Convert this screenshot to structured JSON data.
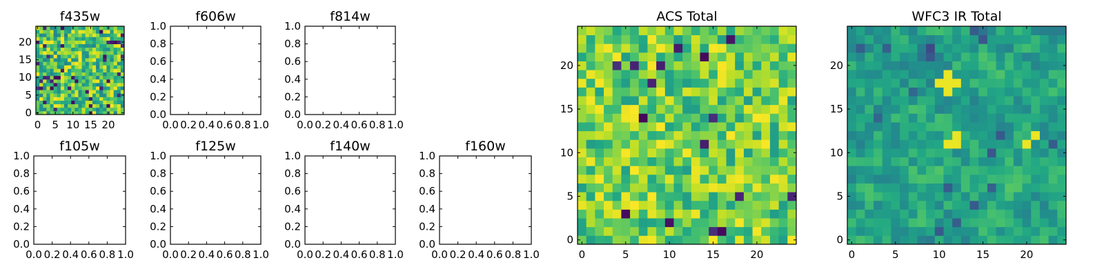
{
  "chart_data": [
    {
      "type": "heatmap",
      "title": "f435w",
      "xticks": [
        0,
        5,
        10,
        15,
        20
      ],
      "yticks": [
        0,
        5,
        10,
        15,
        20
      ],
      "xlim": [
        -0.5,
        24.5
      ],
      "ylim": [
        -0.5,
        24.5
      ],
      "colormap": "viridis",
      "grid_size": 25,
      "seed": 11,
      "value_range": [
        0.45,
        1.0
      ],
      "dark_fraction": 0.07,
      "blur": 0
    },
    {
      "type": "empty",
      "title": "f606w",
      "xticks": [
        "0.0",
        "0.2",
        "0.4",
        "0.6",
        "0.8",
        "1.0"
      ],
      "yticks": [
        "0.0",
        "0.2",
        "0.4",
        "0.6",
        "0.8",
        "1.0"
      ],
      "xlim": [
        0,
        1
      ],
      "ylim": [
        0,
        1
      ]
    },
    {
      "type": "empty",
      "title": "f814w",
      "xticks": [
        "0.0",
        "0.2",
        "0.4",
        "0.6",
        "0.8",
        "1.0"
      ],
      "yticks": [
        "0.0",
        "0.2",
        "0.4",
        "0.6",
        "0.8",
        "1.0"
      ],
      "xlim": [
        0,
        1
      ],
      "ylim": [
        0,
        1
      ]
    },
    {
      "type": "empty",
      "title": "f105w",
      "xticks": [
        "0.0",
        "0.2",
        "0.4",
        "0.6",
        "0.8",
        "1.0"
      ],
      "yticks": [
        "0.0",
        "0.2",
        "0.4",
        "0.6",
        "0.8",
        "1.0"
      ],
      "xlim": [
        0,
        1
      ],
      "ylim": [
        0,
        1
      ]
    },
    {
      "type": "empty",
      "title": "f125w",
      "xticks": [
        "0.0",
        "0.2",
        "0.4",
        "0.6",
        "0.8",
        "1.0"
      ],
      "yticks": [
        "0.0",
        "0.2",
        "0.4",
        "0.6",
        "0.8",
        "1.0"
      ],
      "xlim": [
        0,
        1
      ],
      "ylim": [
        0,
        1
      ]
    },
    {
      "type": "empty",
      "title": "f140w",
      "xticks": [
        "0.0",
        "0.2",
        "0.4",
        "0.6",
        "0.8",
        "1.0"
      ],
      "yticks": [
        "0.0",
        "0.2",
        "0.4",
        "0.6",
        "0.8",
        "1.0"
      ],
      "xlim": [
        0,
        1
      ],
      "ylim": [
        0,
        1
      ]
    },
    {
      "type": "empty",
      "title": "f160w",
      "xticks": [
        "0.0",
        "0.2",
        "0.4",
        "0.6",
        "0.8",
        "1.0"
      ],
      "yticks": [
        "0.0",
        "0.2",
        "0.4",
        "0.6",
        "0.8",
        "1.0"
      ],
      "xlim": [
        0,
        1
      ],
      "ylim": [
        0,
        1
      ]
    },
    {
      "type": "heatmap",
      "title": "ACS Total",
      "xticks": [
        0,
        5,
        10,
        15,
        20
      ],
      "yticks": [
        0,
        5,
        10,
        15,
        20
      ],
      "xlim": [
        -0.5,
        24.5
      ],
      "ylim": [
        -0.5,
        24.5
      ],
      "colormap": "viridis",
      "grid_size": 25,
      "seed": 37,
      "value_range": [
        0.55,
        1.0
      ],
      "dark_fraction": 0.02,
      "blur": 0
    },
    {
      "type": "heatmap",
      "title": "WFC3 IR Total",
      "xticks": [
        0,
        5,
        10,
        15,
        20
      ],
      "yticks": [
        0,
        5,
        10,
        15,
        20
      ],
      "xlim": [
        -0.5,
        24.5
      ],
      "ylim": [
        -0.5,
        24.5
      ],
      "colormap": "viridis",
      "grid_size": 25,
      "seed": 73,
      "value_range": [
        0.35,
        0.8
      ],
      "dark_fraction": 0.03,
      "blur": 1,
      "bright_spots": [
        [
          11,
          18
        ],
        [
          12,
          18
        ],
        [
          10,
          18
        ],
        [
          11,
          17
        ],
        [
          11,
          19
        ],
        [
          12,
          11
        ],
        [
          11,
          11
        ],
        [
          12,
          12
        ],
        [
          20,
          11
        ],
        [
          21,
          12
        ]
      ]
    }
  ]
}
